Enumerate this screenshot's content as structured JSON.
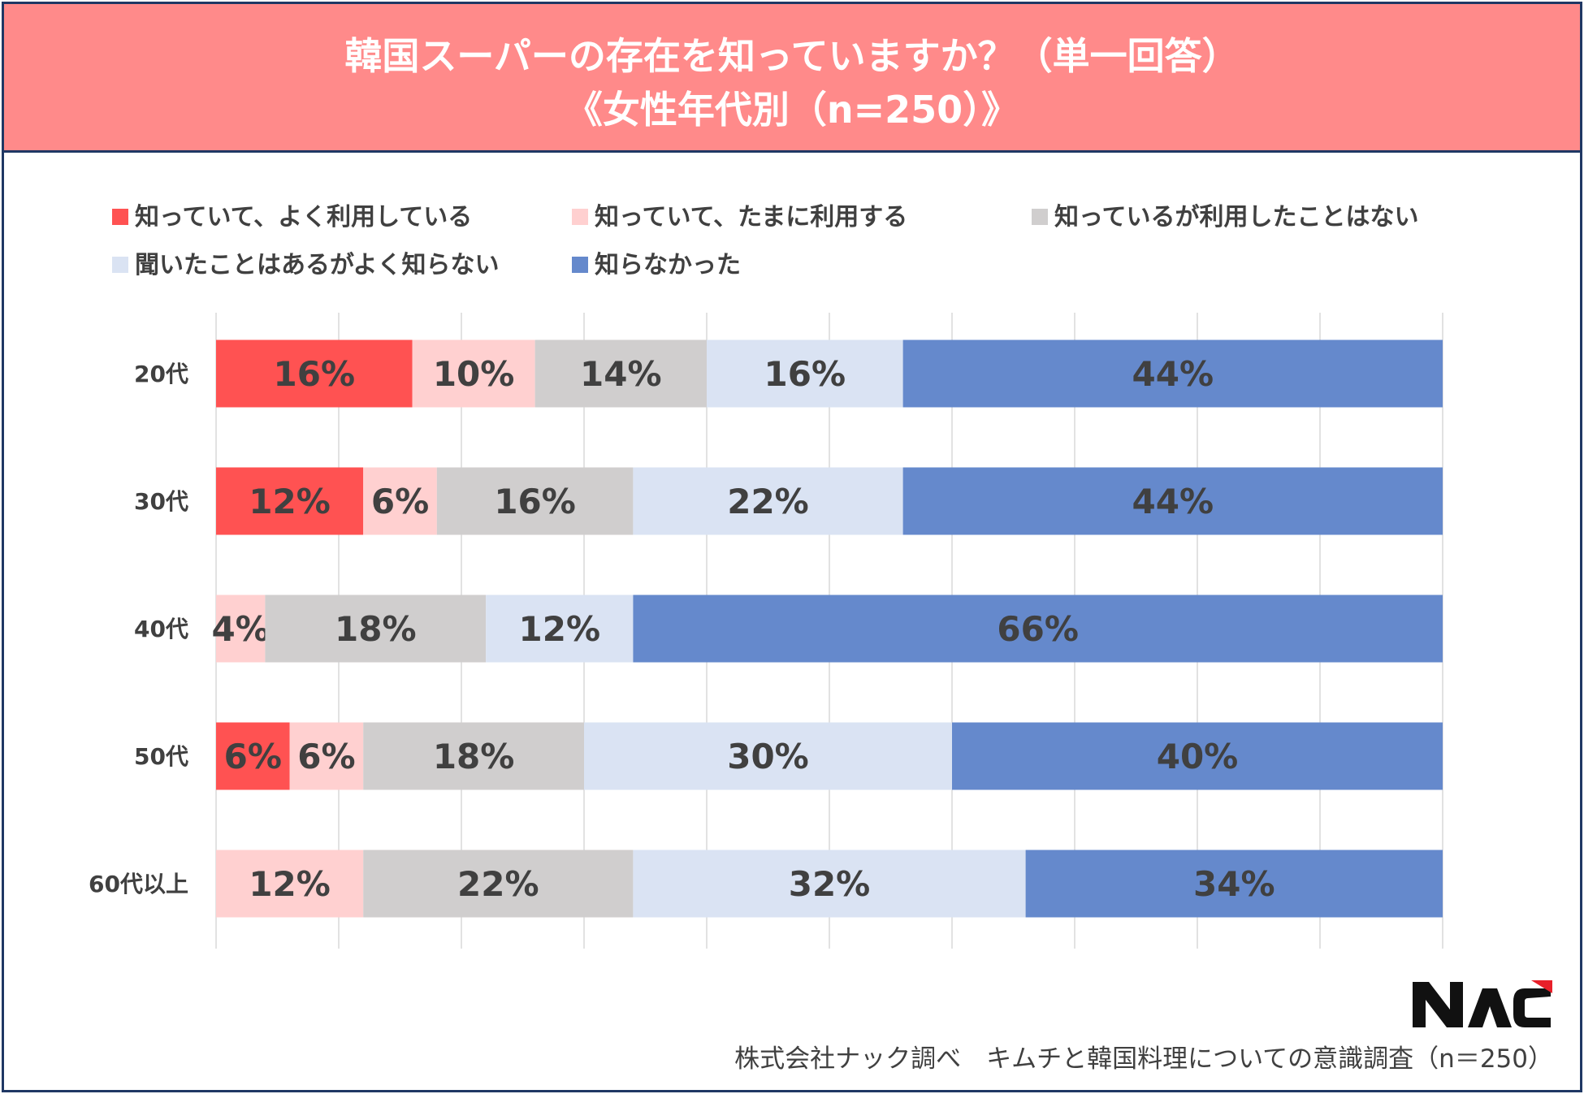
{
  "header": {
    "title_line1": "韓国スーパーの存在を知っていますか？（単一回答）",
    "title_line2": "《女性年代別（n=250）》"
  },
  "legend": [
    {
      "label": "知っていて、よく利用している",
      "color": "#ff5252"
    },
    {
      "label": "知っていて、たまに利用する",
      "color": "#ffd0d0"
    },
    {
      "label": "知っているが利用したことはない",
      "color": "#d0cece"
    },
    {
      "label": "聞いたことはあるがよく知らない",
      "color": "#dae3f3"
    },
    {
      "label": "知らなかった",
      "color": "#6589cc"
    }
  ],
  "chart_data": {
    "type": "bar",
    "orientation": "horizontal",
    "stacked": true,
    "percent_stacked": true,
    "categories": [
      "20代",
      "30代",
      "40代",
      "50代",
      "60代以上"
    ],
    "series": [
      {
        "name": "知っていて、よく利用している",
        "color": "#ff5252",
        "values": [
          16,
          12,
          0,
          6,
          0
        ]
      },
      {
        "name": "知っていて、たまに利用する",
        "color": "#ffd0d0",
        "values": [
          10,
          6,
          4,
          6,
          12
        ]
      },
      {
        "name": "知っているが利用したことはない",
        "color": "#d0cece",
        "values": [
          14,
          16,
          18,
          18,
          22
        ]
      },
      {
        "name": "聞いたことはあるがよく知らない",
        "color": "#dae3f3",
        "values": [
          16,
          22,
          12,
          30,
          32
        ]
      },
      {
        "name": "知らなかった",
        "color": "#6589cc",
        "values": [
          44,
          44,
          66,
          40,
          34
        ]
      }
    ],
    "value_suffix": "%",
    "xlim": [
      0,
      100
    ],
    "grid": true,
    "legend_position": "top"
  },
  "logo": {
    "text": "NAC"
  },
  "footer": {
    "source": "株式会社ナック調べ　キムチと韓国料理についての意識調査（n＝250）"
  }
}
